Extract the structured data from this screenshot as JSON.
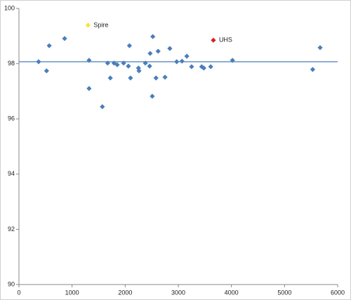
{
  "chart_data": {
    "type": "scatter",
    "xlim": [
      0,
      6000
    ],
    "ylim": [
      90,
      100
    ],
    "xticks": [
      0,
      1000,
      2000,
      3000,
      4000,
      5000,
      6000
    ],
    "yticks": [
      90,
      92,
      94,
      96,
      98,
      100
    ],
    "hline": 98.07,
    "hline_color": "#4a7ebb",
    "series": [
      {
        "color": "#4a7ebb",
        "x": [
          370,
          520,
          570,
          860,
          1320,
          1320,
          1570,
          1670,
          1720,
          1790,
          1850,
          1970,
          2060,
          2080,
          2100,
          2250,
          2260,
          2380,
          2460,
          2470,
          2520,
          2510,
          2580,
          2620,
          2750,
          2840,
          2970,
          3070,
          3160,
          3250,
          3440,
          3480,
          3610,
          4020,
          5530,
          5670
        ],
        "values": [
          98.07,
          97.74,
          98.65,
          98.91,
          98.12,
          97.1,
          96.44,
          98.02,
          97.48,
          98.02,
          97.96,
          98.02,
          97.91,
          98.65,
          97.48,
          97.84,
          97.74,
          98.02,
          97.91,
          98.37,
          98.98,
          96.82,
          97.48,
          98.45,
          97.51,
          98.55,
          98.07,
          98.09,
          98.27,
          97.89,
          97.89,
          97.84,
          97.89,
          98.12,
          97.79,
          98.58
        ]
      },
      {
        "name": "Spire",
        "color": "#f5e642",
        "x": [
          1300
        ],
        "values": [
          99.39
        ]
      },
      {
        "name": "UHS",
        "color": "#d42020",
        "x": [
          3660
        ],
        "values": [
          98.85
        ]
      }
    ]
  }
}
